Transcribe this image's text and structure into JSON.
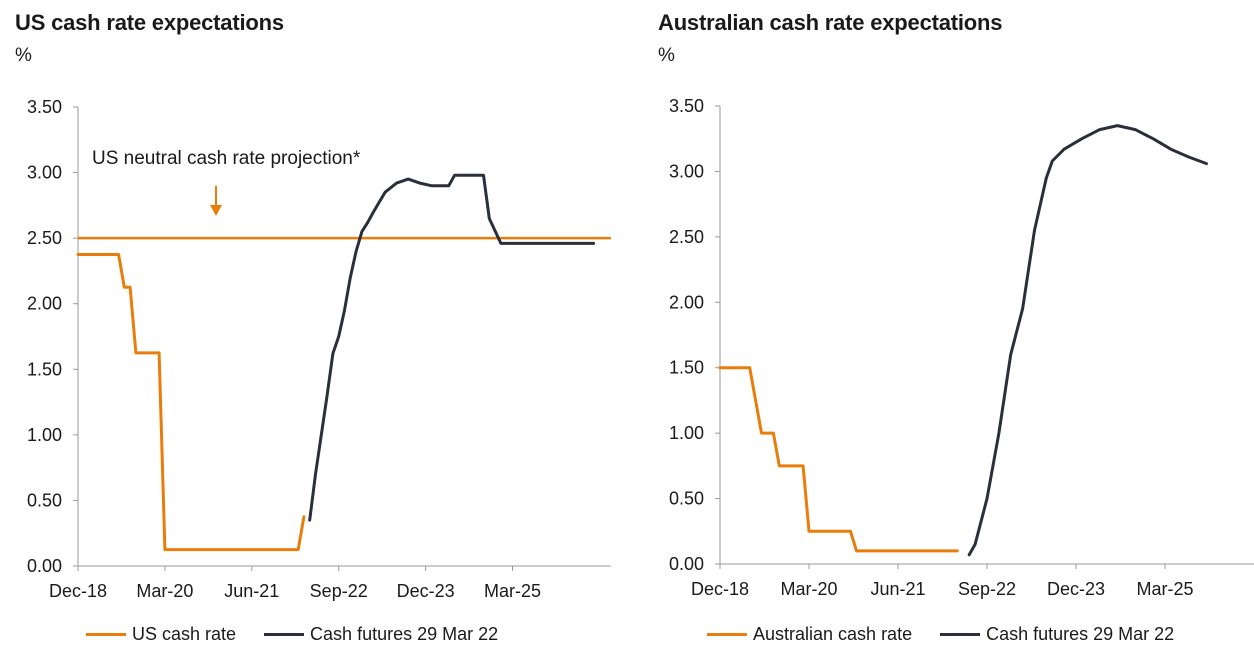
{
  "colors": {
    "cash_rate": "#E87D0C",
    "futures": "#2A2F3B",
    "axis": "#9a9a9a"
  },
  "chart_data": [
    {
      "type": "line",
      "title": "US cash rate expectations",
      "ylabel": "%",
      "ylim": [
        0,
        3.5
      ],
      "yticks": [
        "0.00",
        "0.50",
        "1.00",
        "1.50",
        "2.00",
        "2.50",
        "3.00",
        "3.50"
      ],
      "xlim": [
        "2018-12",
        "2026-08"
      ],
      "xticks": [
        {
          "label": "Dec-18",
          "date": "2018-12"
        },
        {
          "label": "Mar-20",
          "date": "2020-03"
        },
        {
          "label": "Jun-21",
          "date": "2021-06"
        },
        {
          "label": "Sep-22",
          "date": "2022-09"
        },
        {
          "label": "Dec-23",
          "date": "2023-12"
        },
        {
          "label": "Mar-25",
          "date": "2025-03"
        }
      ],
      "reference_line": {
        "value": 2.5,
        "label": "US neutral cash rate projection*"
      },
      "legend_position": "bottom",
      "series": [
        {
          "name": "US cash rate",
          "color_key": "cash_rate",
          "points": [
            [
              "2018-12",
              2.375
            ],
            [
              "2019-07",
              2.375
            ],
            [
              "2019-08",
              2.125
            ],
            [
              "2019-09",
              2.125
            ],
            [
              "2019-10",
              1.625
            ],
            [
              "2020-02",
              1.625
            ],
            [
              "2020-03",
              0.125
            ],
            [
              "2022-02",
              0.125
            ],
            [
              "2022-03",
              0.375
            ]
          ]
        },
        {
          "name": "Cash futures 29 Mar 22",
          "color_key": "futures",
          "points": [
            [
              "2022-04",
              0.35
            ],
            [
              "2022-05",
              0.7
            ],
            [
              "2022-06",
              1.0
            ],
            [
              "2022-07",
              1.3
            ],
            [
              "2022-08",
              1.62
            ],
            [
              "2022-09",
              1.75
            ],
            [
              "2022-10",
              1.95
            ],
            [
              "2022-11",
              2.2
            ],
            [
              "2022-12",
              2.4
            ],
            [
              "2023-01",
              2.55
            ],
            [
              "2023-02",
              2.62
            ],
            [
              "2023-03",
              2.7
            ],
            [
              "2023-05",
              2.85
            ],
            [
              "2023-07",
              2.92
            ],
            [
              "2023-09",
              2.95
            ],
            [
              "2023-11",
              2.92
            ],
            [
              "2024-01",
              2.9
            ],
            [
              "2024-04",
              2.9
            ],
            [
              "2024-05",
              2.98
            ],
            [
              "2024-10",
              2.98
            ],
            [
              "2024-11",
              2.65
            ],
            [
              "2025-01",
              2.46
            ],
            [
              "2026-05",
              2.46
            ]
          ]
        }
      ]
    },
    {
      "type": "line",
      "title": "Australian cash rate expectations",
      "ylabel": "%",
      "ylim": [
        0,
        3.5
      ],
      "yticks": [
        "0.00",
        "0.50",
        "1.00",
        "1.50",
        "2.00",
        "2.50",
        "3.00",
        "3.50"
      ],
      "xlim": [
        "2018-12",
        "2026-06"
      ],
      "xticks": [
        {
          "label": "Dec-18",
          "date": "2018-12"
        },
        {
          "label": "Mar-20",
          "date": "2020-03"
        },
        {
          "label": "Jun-21",
          "date": "2021-06"
        },
        {
          "label": "Sep-22",
          "date": "2022-09"
        },
        {
          "label": "Dec-23",
          "date": "2023-12"
        },
        {
          "label": "Mar-25",
          "date": "2025-03"
        }
      ],
      "legend_position": "bottom",
      "series": [
        {
          "name": "Australian cash rate",
          "color_key": "cash_rate",
          "points": [
            [
              "2018-12",
              1.5
            ],
            [
              "2019-05",
              1.5
            ],
            [
              "2019-06",
              1.25
            ],
            [
              "2019-07",
              1.0
            ],
            [
              "2019-09",
              1.0
            ],
            [
              "2019-10",
              0.75
            ],
            [
              "2020-02",
              0.75
            ],
            [
              "2020-03",
              0.25
            ],
            [
              "2020-10",
              0.25
            ],
            [
              "2020-11",
              0.1
            ],
            [
              "2022-04",
              0.1
            ]
          ]
        },
        {
          "name": "Cash futures 29 Mar 22",
          "color_key": "futures",
          "points": [
            [
              "2022-06",
              0.07
            ],
            [
              "2022-07",
              0.15
            ],
            [
              "2022-09",
              0.5
            ],
            [
              "2022-11",
              1.0
            ],
            [
              "2023-01",
              1.6
            ],
            [
              "2023-03",
              1.95
            ],
            [
              "2023-05",
              2.55
            ],
            [
              "2023-07",
              2.95
            ],
            [
              "2023-08",
              3.08
            ],
            [
              "2023-10",
              3.17
            ],
            [
              "2024-01",
              3.25
            ],
            [
              "2024-04",
              3.32
            ],
            [
              "2024-07",
              3.35
            ],
            [
              "2024-10",
              3.32
            ],
            [
              "2025-01",
              3.25
            ],
            [
              "2025-04",
              3.17
            ],
            [
              "2025-07",
              3.11
            ],
            [
              "2025-10",
              3.06
            ]
          ]
        }
      ]
    }
  ]
}
